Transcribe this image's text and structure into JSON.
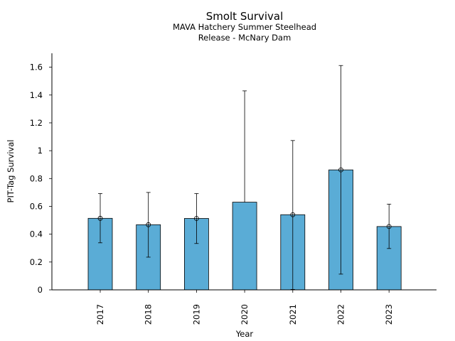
{
  "chart_data": {
    "type": "bar",
    "title": "Smolt Survival",
    "subtitle_lines": [
      "MAVA Hatchery Summer Steelhead",
      "Release - McNary Dam"
    ],
    "xlabel": "Year",
    "ylabel": "PIT-Tag Survival",
    "categories": [
      "2017",
      "2018",
      "2019",
      "2020",
      "2021",
      "2022",
      "2023"
    ],
    "values": [
      0.514,
      0.468,
      0.513,
      0.63,
      0.54,
      0.862,
      0.455
    ],
    "error_lower": [
      0.338,
      0.235,
      0.333,
      null,
      0.003,
      0.113,
      0.297
    ],
    "error_upper": [
      0.692,
      0.7,
      0.692,
      1.43,
      1.073,
      1.612,
      0.616
    ],
    "yticks": [
      0,
      0.2,
      0.4,
      0.6,
      0.8,
      1,
      1.2,
      1.4,
      1.6
    ],
    "ylim": [
      0,
      1.7
    ],
    "grid": false,
    "colors": {
      "bar": "#5aacd6",
      "edge": "#000000"
    }
  }
}
